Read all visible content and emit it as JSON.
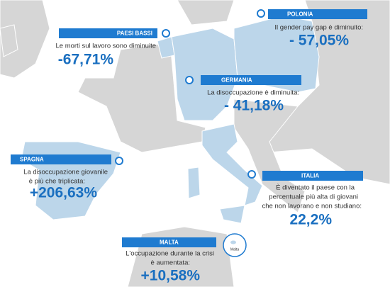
{
  "callouts": [
    {
      "country": "PAESI BASSI",
      "text": [
        "Le morti sul lavoro sono diminuite"
      ],
      "value": "-67,71%"
    },
    {
      "country": "POLONIA",
      "text": [
        "Il gender pay gap è diminuito:"
      ],
      "value": "- 57,05%"
    },
    {
      "country": "GERMANIA",
      "text": [
        "La disoccupazione è diminuita:"
      ],
      "value": "- 41,18%"
    },
    {
      "country": "SPAGNA",
      "text": [
        "La disoccupazione giovanile",
        "è più che triplicata:"
      ],
      "value": "+206,63%"
    },
    {
      "country": "ITALIA",
      "text": [
        "È diventato il paese con la",
        "percentuale più alta di giovani",
        "che non lavorano e non studiano:"
      ],
      "value": "22,2%"
    },
    {
      "country": "MALTA",
      "text": [
        "L'occupazione durante la crisi",
        "è aumentata:"
      ],
      "value": "+10,58%"
    }
  ],
  "map_labels": {
    "malta": "Malta"
  }
}
